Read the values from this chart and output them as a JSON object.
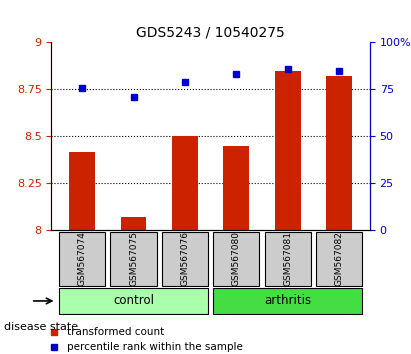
{
  "title": "GDS5243 / 10540275",
  "samples": [
    "GSM567074",
    "GSM567075",
    "GSM567076",
    "GSM567080",
    "GSM567081",
    "GSM567082"
  ],
  "bar_values": [
    8.42,
    8.07,
    8.5,
    8.45,
    8.85,
    8.82
  ],
  "percentile_values": [
    76,
    71,
    79,
    83,
    86,
    85
  ],
  "ylim_left": [
    8.0,
    9.0
  ],
  "ylim_right": [
    0,
    100
  ],
  "yticks_left": [
    8.0,
    8.25,
    8.5,
    8.75,
    9.0
  ],
  "ytick_labels_left": [
    "8",
    "8.25",
    "8.5",
    "8.75",
    "9"
  ],
  "yticks_right": [
    0,
    25,
    50,
    75,
    100
  ],
  "ytick_labels_right": [
    "0",
    "25",
    "50",
    "75",
    "100%"
  ],
  "hlines": [
    8.25,
    8.5,
    8.75
  ],
  "bar_color": "#cc2200",
  "dot_color": "#0000cc",
  "control_label": "control",
  "arthritis_label": "arthritis",
  "control_indices": [
    0,
    1,
    2
  ],
  "arthritis_indices": [
    3,
    4,
    5
  ],
  "control_color": "#aaffaa",
  "arthritis_color": "#44dd44",
  "group_label_color": "#000000",
  "disease_state_label": "disease state",
  "legend_bar_label": "transformed count",
  "legend_dot_label": "percentile rank within the sample",
  "tick_label_color_left": "#cc2200",
  "tick_label_color_right": "#0000cc",
  "bar_width": 0.5,
  "background_color": "#ffffff",
  "plot_bg_color": "#ffffff",
  "sample_box_color": "#cccccc"
}
